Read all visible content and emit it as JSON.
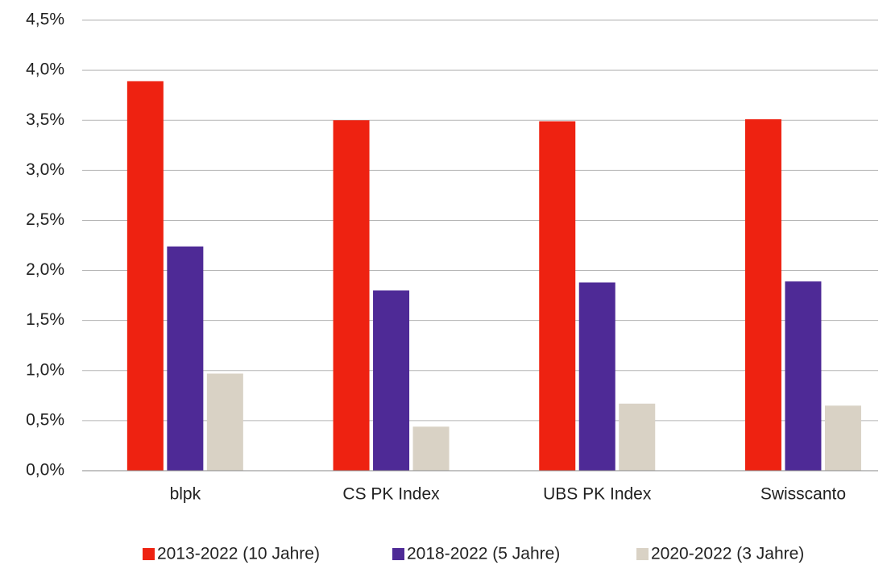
{
  "chart_data": {
    "type": "bar",
    "categories": [
      "blpk",
      "CS PK Index",
      "UBS PK Index",
      "Swisscanto"
    ],
    "series": [
      {
        "name": "2013-2022 (10 Jahre)",
        "color": "#ee2211",
        "values": [
          3.89,
          3.5,
          3.49,
          3.51
        ]
      },
      {
        "name": "2018-2022 (5 Jahre)",
        "color": "#4e2a96",
        "values": [
          2.24,
          1.8,
          1.88,
          1.89
        ]
      },
      {
        "name": "2020-2022 (3 Jahre)",
        "color": "#d9d2c5",
        "values": [
          0.97,
          0.44,
          0.67,
          0.65
        ]
      }
    ],
    "ylim": [
      0,
      4.5
    ],
    "yticks": [
      {
        "value": 0,
        "label": "0,0%"
      },
      {
        "value": 0.5,
        "label": "0,5%"
      },
      {
        "value": 1,
        "label": "1,0%"
      },
      {
        "value": 1.5,
        "label": "1,5%"
      },
      {
        "value": 2,
        "label": "2,0%"
      },
      {
        "value": 2.5,
        "label": "2,5%"
      },
      {
        "value": 3,
        "label": "3,0%"
      },
      {
        "value": 3.5,
        "label": "3,5%"
      },
      {
        "value": 4,
        "label": "4,0%"
      },
      {
        "value": 4.5,
        "label": "4,5%"
      }
    ],
    "grid": true,
    "legend": "bottom"
  }
}
